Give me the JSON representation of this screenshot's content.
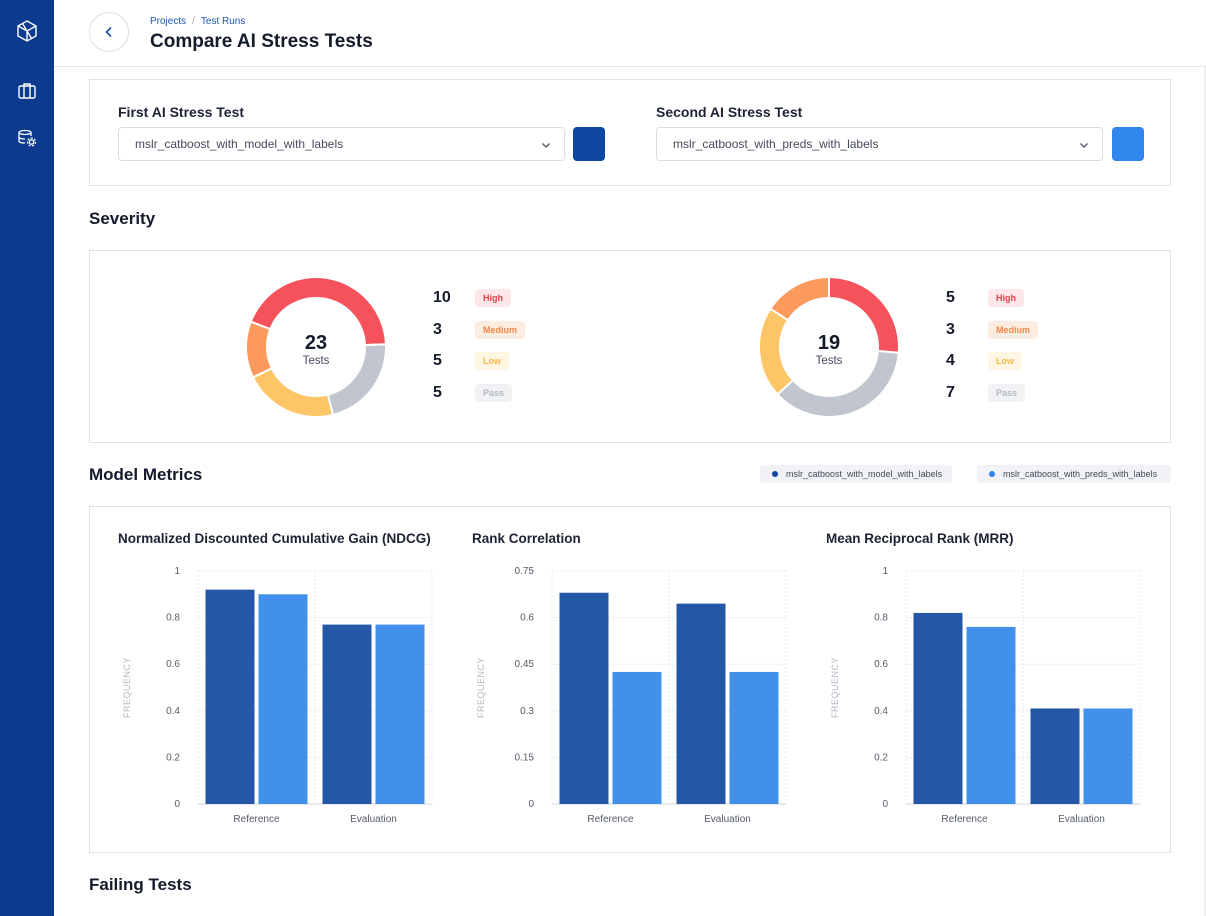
{
  "breadcrumb": {
    "items": [
      "Projects",
      "Test Runs"
    ]
  },
  "page": {
    "title": "Compare AI Stress Tests"
  },
  "first_test": {
    "label": "First AI Stress Test",
    "value": "mslr_catboost_with_model_with_labels",
    "color": "#0e46a3"
  },
  "second_test": {
    "label": "Second AI Stress Test",
    "value": "mslr_catboost_with_preds_with_labels",
    "color": "#2f86ec"
  },
  "severity": {
    "title": "Severity",
    "colors": {
      "High": "#f6525b",
      "Medium": "#fb9a5c",
      "Low": "#fdc566",
      "Pass": "#c1c6ce"
    },
    "badge_bg": {
      "High": "#fde7e8",
      "Medium": "#fdece0",
      "Low": "#fef5e2",
      "Pass": "#f1f2f4"
    },
    "badge_fg": {
      "High": "#e03e47",
      "Medium": "#f2874a",
      "Low": "#f7b84a",
      "Pass": "#b3b8c0"
    },
    "left": {
      "total": "23",
      "unit": "Tests",
      "rows": [
        {
          "count": "10",
          "label": "High"
        },
        {
          "count": "3",
          "label": "Medium"
        },
        {
          "count": "5",
          "label": "Low"
        },
        {
          "count": "5",
          "label": "Pass"
        }
      ]
    },
    "right": {
      "total": "19",
      "unit": "Tests",
      "rows": [
        {
          "count": "5",
          "label": "High"
        },
        {
          "count": "3",
          "label": "Medium"
        },
        {
          "count": "4",
          "label": "Low"
        },
        {
          "count": "7",
          "label": "Pass"
        }
      ]
    }
  },
  "metrics": {
    "title": "Model Metrics",
    "legend": [
      {
        "label": "mslr_catboost_with_model_with_labels",
        "color": "#0e46a3"
      },
      {
        "label": "mslr_catboost_with_preds_with_labels",
        "color": "#2f86ec"
      }
    ]
  },
  "chart_data": [
    {
      "type": "bar",
      "title": "Normalized Discounted Cumulative Gain (NDCG)",
      "categories": [
        "Reference",
        "Evaluation"
      ],
      "series": [
        {
          "name": "mslr_catboost_with_model_with_labels",
          "values": [
            0.92,
            0.77
          ]
        },
        {
          "name": "mslr_catboost_with_preds_with_labels",
          "values": [
            0.9,
            0.77
          ]
        }
      ],
      "ylabel": "FREQUENCY",
      "ylim": [
        0,
        1
      ],
      "yticks": [
        "0",
        "0.2",
        "0.4",
        "0.6",
        "0.8",
        "1"
      ]
    },
    {
      "type": "bar",
      "title": "Rank Correlation",
      "categories": [
        "Reference",
        "Evaluation"
      ],
      "series": [
        {
          "name": "mslr_catboost_with_model_with_labels",
          "values": [
            0.68,
            0.645
          ]
        },
        {
          "name": "mslr_catboost_with_preds_with_labels",
          "values": [
            0.425,
            0.425
          ]
        }
      ],
      "ylabel": "FREQUENCY",
      "ylim": [
        0,
        0.75
      ],
      "yticks": [
        "0",
        "0.15",
        "0.3",
        "0.45",
        "0.6",
        "0.75"
      ]
    },
    {
      "type": "bar",
      "title": "Mean Reciprocal Rank (MRR)",
      "categories": [
        "Reference",
        "Evaluation"
      ],
      "series": [
        {
          "name": "mslr_catboost_with_model_with_labels",
          "values": [
            0.82,
            0.41
          ]
        },
        {
          "name": "mslr_catboost_with_preds_with_labels",
          "values": [
            0.76,
            0.41
          ]
        }
      ],
      "ylabel": "FREQUENCY",
      "ylim": [
        0,
        1
      ],
      "yticks": [
        "0",
        "0.2",
        "0.4",
        "0.6",
        "0.8",
        "1"
      ]
    }
  ],
  "failing": {
    "title": "Failing Tests"
  }
}
